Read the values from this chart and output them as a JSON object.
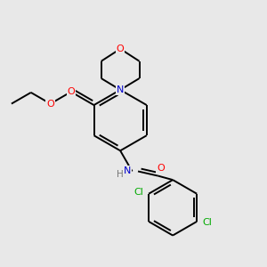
{
  "bg_color": "#e8e8e8",
  "bond_color": "#000000",
  "atom_colors": {
    "O": "#ff0000",
    "N": "#0000cc",
    "Cl": "#00aa00",
    "C": "#000000",
    "H": "#777777"
  },
  "lw": 1.4,
  "dbo": 0.12
}
